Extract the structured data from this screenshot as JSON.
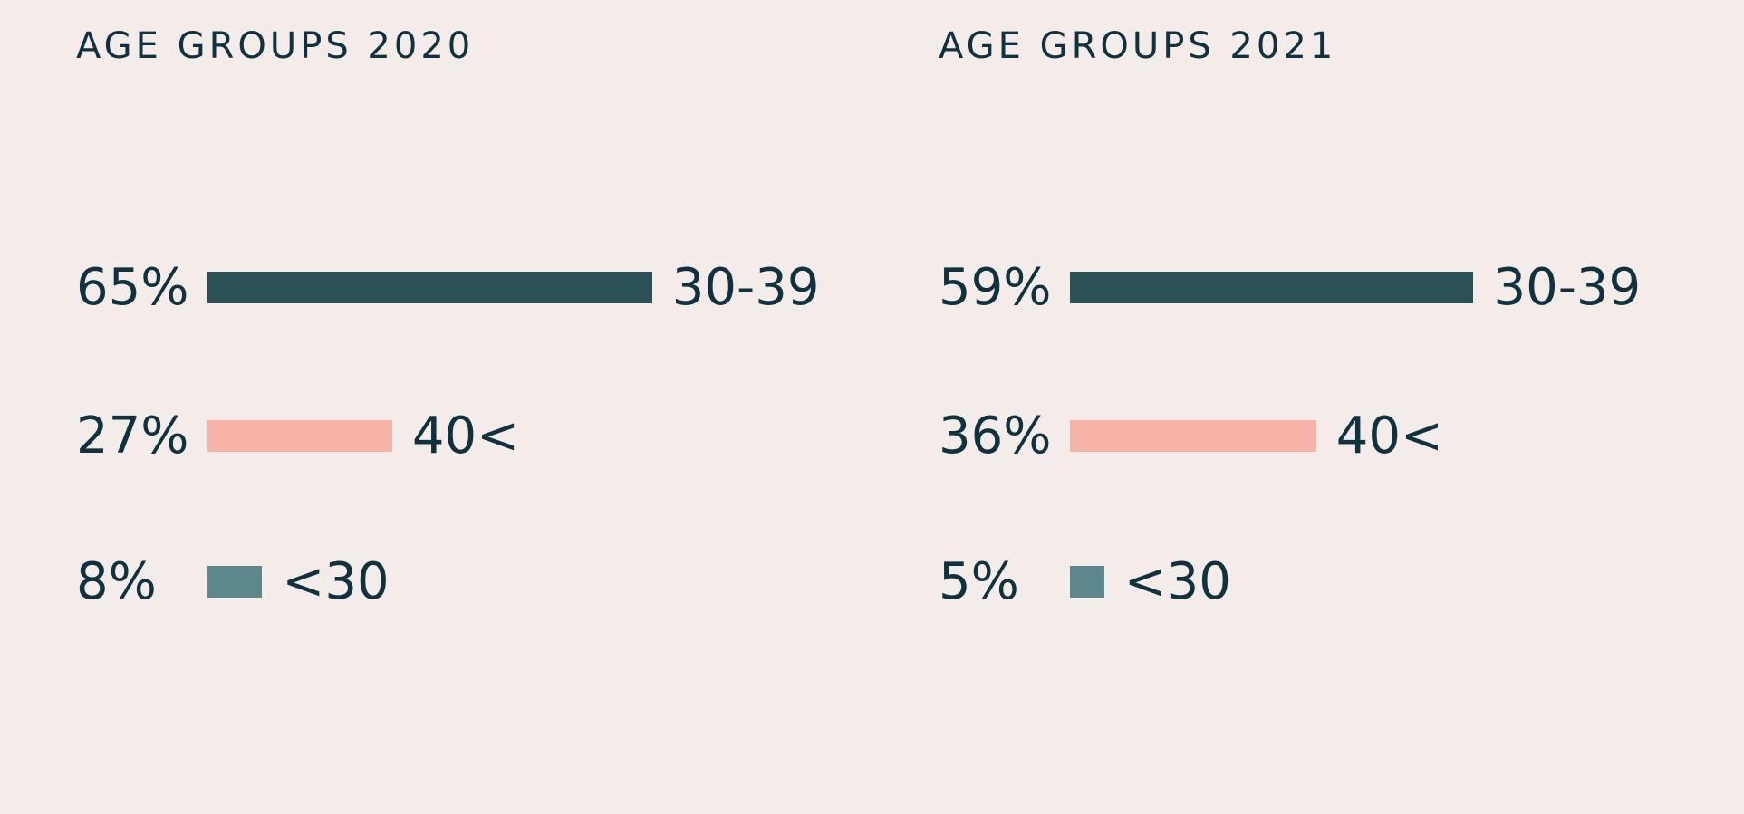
{
  "colors": {
    "background": "#F3ECE9",
    "text": "#0F3140",
    "age_30_39": "#2B5157",
    "age_40_plus": "#F7B3A8",
    "age_under_30": "#5C878D"
  },
  "chart_data": [
    {
      "type": "bar",
      "orientation": "horizontal",
      "title": "AGE GROUPS 2020",
      "categories": [
        "30-39",
        "40<",
        "<30"
      ],
      "values": [
        65,
        27,
        8
      ],
      "value_labels": [
        "65%",
        "27%",
        "8%"
      ],
      "unit": "%",
      "grid": false
    },
    {
      "type": "bar",
      "orientation": "horizontal",
      "title": "AGE GROUPS 2021",
      "categories": [
        "30-39",
        "40<",
        "<30"
      ],
      "values": [
        59,
        36,
        5
      ],
      "value_labels": [
        "59%",
        "36%",
        "5%"
      ],
      "unit": "%",
      "grid": false
    }
  ]
}
